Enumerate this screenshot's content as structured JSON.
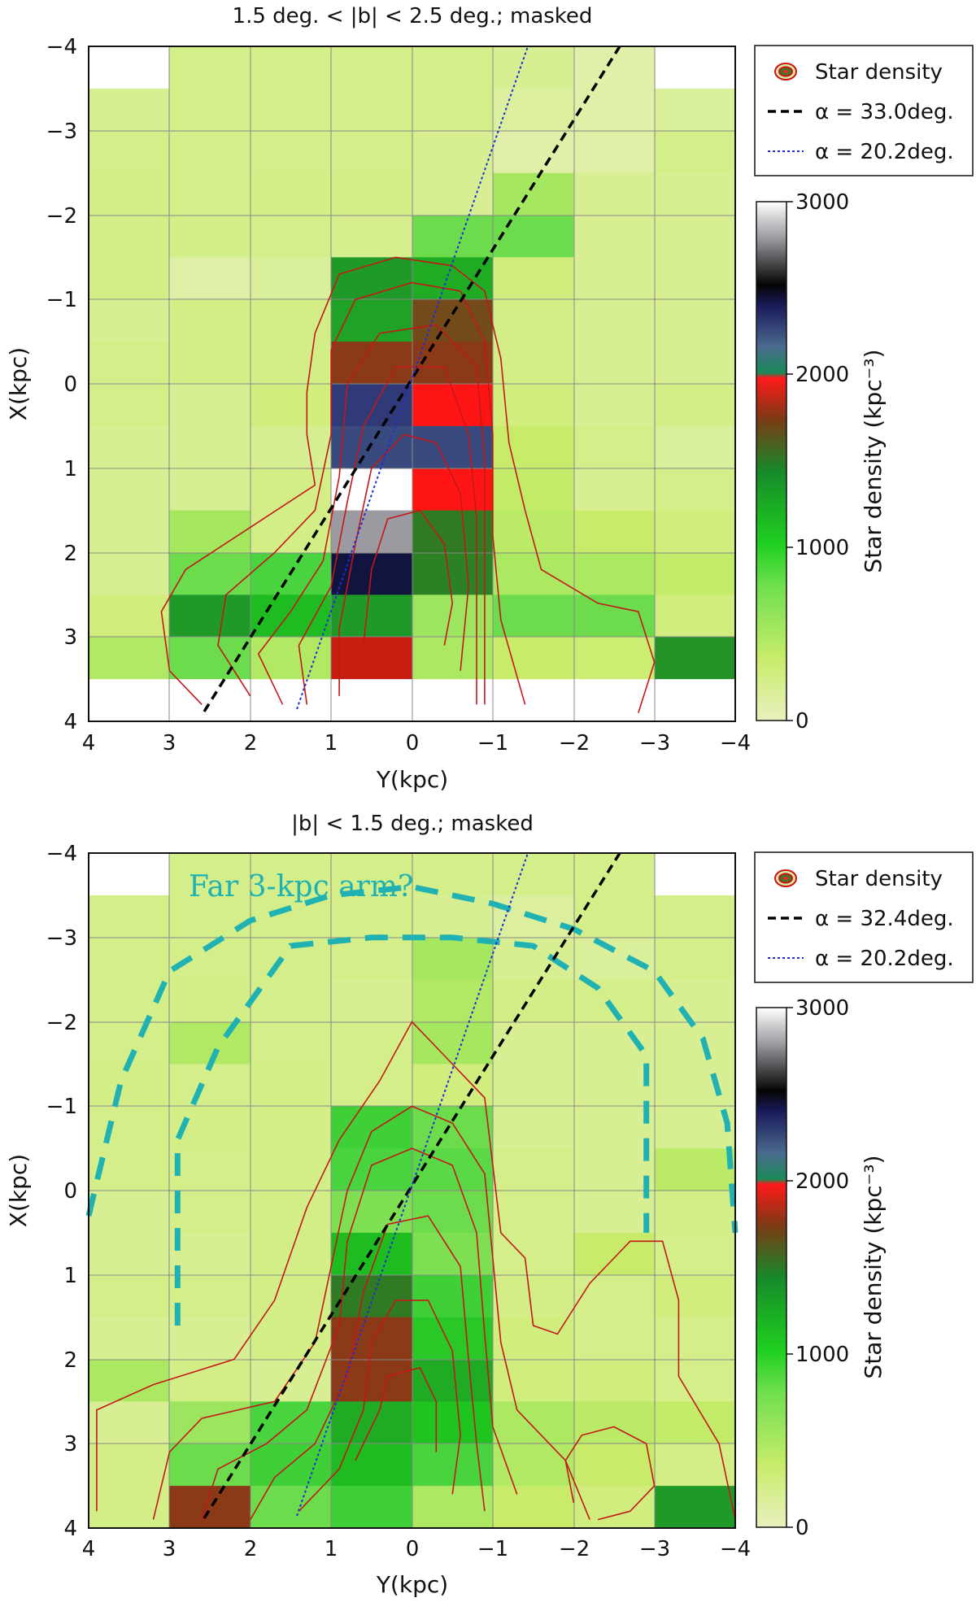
{
  "chart_data": [
    {
      "type": "heatmap",
      "title": "1.5 deg. < |b| < 2.5 deg.; masked",
      "xlabel": "Y(kpc)",
      "ylabel": "X(kpc)",
      "xlim": [
        4,
        -4
      ],
      "ylim": [
        -4,
        4
      ],
      "x_ticks": [
        "4",
        "3",
        "2",
        "1",
        "0",
        "−1",
        "−2",
        "−3",
        "−4"
      ],
      "y_ticks": [
        "−4",
        "−3",
        "−2",
        "−1",
        "0",
        "1",
        "2",
        "3",
        "4"
      ],
      "cell_y_edges": [
        4,
        3,
        2,
        1,
        0,
        -1,
        -2,
        -3,
        -4
      ],
      "cell_x_edges": [
        -4,
        -3.5,
        -3,
        -2.5,
        -2,
        -1.5,
        -1,
        -0.5,
        0,
        0.5,
        1,
        1.5,
        2,
        2.5,
        3,
        3.5,
        4
      ],
      "grid": [
        [
          0,
          320,
          320,
          320,
          320,
          300,
          240,
          0
        ],
        [
          300,
          320,
          320,
          320,
          320,
          270,
          240,
          280
        ],
        [
          320,
          320,
          320,
          320,
          300,
          240,
          250,
          320
        ],
        [
          330,
          320,
          330,
          330,
          300,
          520,
          300,
          300
        ],
        [
          330,
          330,
          320,
          310,
          700,
          700,
          300,
          300
        ],
        [
          330,
          250,
          280,
          1250,
          1150,
          350,
          300,
          300
        ],
        [
          300,
          330,
          330,
          1200,
          1600,
          330,
          300,
          300
        ],
        [
          320,
          330,
          330,
          1650,
          1650,
          330,
          300,
          300
        ],
        [
          320,
          300,
          350,
          2350,
          2000,
          350,
          300,
          330
        ],
        [
          300,
          300,
          300,
          2300,
          2300,
          400,
          320,
          280
        ],
        [
          300,
          300,
          330,
          3000,
          2000,
          420,
          300,
          320
        ],
        [
          300,
          520,
          330,
          2850,
          1450,
          450,
          400,
          350
        ],
        [
          300,
          700,
          800,
          2600,
          1400,
          500,
          500,
          420
        ],
        [
          350,
          1250,
          1050,
          1250,
          550,
          700,
          700,
          350
        ],
        [
          480,
          700,
          480,
          1800,
          500,
          400,
          380,
          1300
        ],
        [
          0,
          0,
          0,
          0,
          0,
          0,
          0,
          0
        ]
      ],
      "colorbar": {
        "label": "Star density (kpc⁻³)",
        "min": 0,
        "max": 3000,
        "ticks": [
          "3000",
          "2000",
          "1000",
          "0"
        ]
      },
      "legend": [
        "Star density",
        "α = 33.0deg.",
        "α = 20.2deg."
      ],
      "lines": [
        {
          "name": "α = 33.0deg.",
          "angle_deg": 33.0,
          "style": "dashed",
          "color": "#000000"
        },
        {
          "name": "α = 20.2deg.",
          "angle_deg": 20.2,
          "style": "dotted",
          "color": "#1f2fd6"
        }
      ],
      "contours": [
        [
          [
            2.6,
            3.8
          ],
          [
            3.0,
            3.4
          ],
          [
            3.1,
            2.7
          ],
          [
            2.8,
            2.2
          ],
          [
            2.0,
            1.7
          ],
          [
            1.2,
            1.2
          ],
          [
            1.3,
            0.6
          ],
          [
            1.3,
            0.1
          ],
          [
            1.2,
            -0.6
          ],
          [
            0.9,
            -1.3
          ],
          [
            0.2,
            -1.5
          ],
          [
            -0.5,
            -1.4
          ],
          [
            -0.9,
            -1.1
          ],
          [
            -1.1,
            -0.3
          ],
          [
            -1.2,
            0.7
          ],
          [
            -1.4,
            1.5
          ],
          [
            -1.6,
            2.2
          ],
          [
            -2.3,
            2.6
          ],
          [
            -2.8,
            2.7
          ],
          [
            -3.0,
            3.3
          ],
          [
            -2.8,
            3.9
          ]
        ],
        [
          [
            2.0,
            3.7
          ],
          [
            2.4,
            3.1
          ],
          [
            2.3,
            2.5
          ],
          [
            1.7,
            2.0
          ],
          [
            1.2,
            1.5
          ],
          [
            1.0,
            0.6
          ],
          [
            1.0,
            -0.4
          ],
          [
            0.7,
            -1.0
          ],
          [
            0.0,
            -1.2
          ],
          [
            -0.6,
            -1.1
          ],
          [
            -0.9,
            -0.5
          ],
          [
            -1.0,
            0.6
          ],
          [
            -1.0,
            1.8
          ],
          [
            -1.1,
            2.8
          ],
          [
            -1.4,
            3.8
          ]
        ],
        [
          [
            1.6,
            3.8
          ],
          [
            1.9,
            3.2
          ],
          [
            1.5,
            2.7
          ],
          [
            1.1,
            2.1
          ],
          [
            0.9,
            1.1
          ],
          [
            0.8,
            0.0
          ],
          [
            0.4,
            -0.6
          ],
          [
            -0.3,
            -0.7
          ],
          [
            -0.8,
            -0.2
          ],
          [
            -0.9,
            0.9
          ],
          [
            -0.9,
            2.2
          ],
          [
            -0.9,
            3.8
          ]
        ],
        [
          [
            1.3,
            3.8
          ],
          [
            1.4,
            3.1
          ],
          [
            1.0,
            2.4
          ],
          [
            0.8,
            1.4
          ],
          [
            0.6,
            0.5
          ],
          [
            0.2,
            -0.2
          ],
          [
            -0.4,
            -0.2
          ],
          [
            -0.7,
            0.6
          ],
          [
            -0.8,
            1.6
          ],
          [
            -0.8,
            2.8
          ],
          [
            -0.8,
            3.8
          ]
        ],
        [
          [
            0.9,
            3.7
          ],
          [
            0.9,
            2.9
          ],
          [
            0.7,
            1.9
          ],
          [
            0.5,
            1.0
          ],
          [
            0.1,
            0.6
          ],
          [
            -0.3,
            0.7
          ],
          [
            -0.6,
            1.3
          ],
          [
            -0.7,
            2.4
          ],
          [
            -0.6,
            3.4
          ]
        ],
        [
          [
            0.6,
            3.1
          ],
          [
            0.5,
            2.2
          ],
          [
            0.3,
            1.6
          ],
          [
            -0.1,
            1.5
          ],
          [
            -0.4,
            1.9
          ],
          [
            -0.5,
            2.6
          ],
          [
            -0.4,
            3.1
          ]
        ]
      ]
    },
    {
      "type": "heatmap",
      "title": "|b| < 1.5 deg.; masked",
      "xlabel": "Y(kpc)",
      "ylabel": "X(kpc)",
      "xlim": [
        4,
        -4
      ],
      "ylim": [
        -4,
        4
      ],
      "x_ticks": [
        "4",
        "3",
        "2",
        "1",
        "0",
        "−1",
        "−2",
        "−3",
        "−4"
      ],
      "y_ticks": [
        "−4",
        "−3",
        "−2",
        "−1",
        "0",
        "1",
        "2",
        "3",
        "4"
      ],
      "cell_y_edges": [
        4,
        3,
        2,
        1,
        0,
        -1,
        -2,
        -3,
        -4
      ],
      "cell_x_edges": [
        -4,
        -3.5,
        -3,
        -2.5,
        -2,
        -1.5,
        -1,
        -0.5,
        0,
        0.5,
        1,
        1.5,
        2,
        2.5,
        3,
        3.5,
        4
      ],
      "grid": [
        [
          0,
          320,
          320,
          320,
          320,
          320,
          320,
          0
        ],
        [
          320,
          320,
          320,
          320,
          300,
          270,
          320,
          320
        ],
        [
          320,
          320,
          320,
          320,
          520,
          300,
          280,
          320
        ],
        [
          320,
          330,
          320,
          300,
          480,
          330,
          320,
          300
        ],
        [
          320,
          480,
          320,
          320,
          520,
          300,
          300,
          300
        ],
        [
          330,
          320,
          330,
          320,
          350,
          300,
          300,
          300
        ],
        [
          320,
          330,
          330,
          850,
          700,
          300,
          300,
          300
        ],
        [
          320,
          320,
          330,
          800,
          750,
          320,
          300,
          450
        ],
        [
          300,
          320,
          330,
          650,
          700,
          320,
          300,
          330
        ],
        [
          300,
          300,
          330,
          1050,
          650,
          320,
          400,
          320
        ],
        [
          320,
          320,
          330,
          1450,
          850,
          330,
          320,
          350
        ],
        [
          300,
          300,
          330,
          1650,
          950,
          350,
          320,
          320
        ],
        [
          500,
          330,
          300,
          1650,
          1150,
          350,
          350,
          320
        ],
        [
          300,
          550,
          800,
          1150,
          1000,
          500,
          450,
          420
        ],
        [
          330,
          700,
          850,
          1050,
          800,
          480,
          400,
          330
        ],
        [
          330,
          1650,
          700,
          850,
          500,
          400,
          350,
          1250
        ]
      ],
      "colorbar": {
        "label": "Star density (kpc⁻³)",
        "min": 0,
        "max": 3000,
        "ticks": [
          "3000",
          "2000",
          "1000",
          "0"
        ]
      },
      "legend": [
        "Star density",
        "α = 32.4deg.",
        "α = 20.2deg."
      ],
      "annotation": "Far 3-kpc arm?",
      "lines": [
        {
          "name": "α = 32.4deg.",
          "angle_deg": 32.4,
          "style": "dashed",
          "color": "#000000"
        },
        {
          "name": "α = 20.2deg.",
          "angle_deg": 20.2,
          "style": "dotted",
          "color": "#1f2fd6"
        }
      ],
      "arm_curves": [
        [
          [
            4.0,
            0.3
          ],
          [
            3.6,
            -1.3
          ],
          [
            3.0,
            -2.6
          ],
          [
            2.0,
            -3.2
          ],
          [
            1.0,
            -3.5
          ],
          [
            0.0,
            -3.6
          ],
          [
            -1.0,
            -3.4
          ],
          [
            -2.0,
            -3.1
          ],
          [
            -3.0,
            -2.6
          ],
          [
            -3.6,
            -1.8
          ],
          [
            -3.9,
            -0.8
          ],
          [
            -4.0,
            0.5
          ]
        ],
        [
          [
            2.9,
            1.6
          ],
          [
            2.9,
            -0.6
          ],
          [
            2.4,
            -1.7
          ],
          [
            1.5,
            -2.9
          ],
          [
            0.5,
            -3.0
          ],
          [
            -0.5,
            -3.0
          ],
          [
            -1.5,
            -2.9
          ],
          [
            -2.3,
            -2.4
          ],
          [
            -2.9,
            -1.6
          ],
          [
            -2.9,
            -0.2
          ],
          [
            -2.9,
            0.5
          ]
        ]
      ],
      "contours": [
        [
          [
            3.9,
            3.8
          ],
          [
            3.9,
            2.6
          ],
          [
            3.2,
            2.3
          ],
          [
            2.2,
            2.0
          ],
          [
            1.7,
            1.3
          ],
          [
            1.3,
            0.2
          ],
          [
            0.9,
            -0.6
          ],
          [
            0.4,
            -1.3
          ],
          [
            0.0,
            -2.0
          ],
          [
            -0.4,
            -1.6
          ],
          [
            -0.9,
            -1.1
          ],
          [
            -1.0,
            -0.3
          ],
          [
            -1.1,
            0.5
          ],
          [
            -1.4,
            0.8
          ],
          [
            -1.5,
            1.6
          ],
          [
            -1.8,
            1.7
          ],
          [
            -2.2,
            1.1
          ],
          [
            -2.7,
            0.6
          ],
          [
            -3.1,
            0.6
          ],
          [
            -3.3,
            1.3
          ],
          [
            -3.3,
            2.2
          ],
          [
            -3.8,
            3.0
          ],
          [
            -4.0,
            3.9
          ]
        ],
        [
          [
            3.2,
            3.9
          ],
          [
            3.0,
            3.1
          ],
          [
            2.6,
            2.7
          ],
          [
            1.7,
            2.5
          ],
          [
            1.2,
            1.8
          ],
          [
            1.0,
            0.9
          ],
          [
            0.8,
            0.0
          ],
          [
            0.5,
            -0.7
          ],
          [
            0.0,
            -1.0
          ],
          [
            -0.5,
            -0.8
          ],
          [
            -0.9,
            -0.2
          ],
          [
            -1.0,
            0.8
          ],
          [
            -1.1,
            1.8
          ],
          [
            -1.3,
            2.6
          ],
          [
            -1.9,
            3.2
          ],
          [
            -2.2,
            3.9
          ]
        ],
        [
          [
            2.6,
            3.9
          ],
          [
            2.4,
            3.3
          ],
          [
            1.8,
            3.0
          ],
          [
            1.3,
            2.6
          ],
          [
            0.9,
            1.6
          ],
          [
            0.8,
            0.6
          ],
          [
            0.5,
            -0.3
          ],
          [
            0.0,
            -0.5
          ],
          [
            -0.5,
            -0.3
          ],
          [
            -0.8,
            0.5
          ],
          [
            -0.9,
            1.7
          ],
          [
            -1.0,
            2.8
          ],
          [
            -1.3,
            3.6
          ]
        ],
        [
          [
            2.0,
            3.9
          ],
          [
            1.7,
            3.4
          ],
          [
            1.2,
            3.0
          ],
          [
            0.8,
            2.2
          ],
          [
            0.6,
            1.2
          ],
          [
            0.3,
            0.4
          ],
          [
            -0.2,
            0.3
          ],
          [
            -0.6,
            0.9
          ],
          [
            -0.7,
            2.0
          ],
          [
            -0.8,
            3.0
          ],
          [
            -0.9,
            3.8
          ]
        ],
        [
          [
            1.4,
            3.8
          ],
          [
            0.9,
            3.3
          ],
          [
            0.6,
            2.6
          ],
          [
            0.5,
            1.8
          ],
          [
            0.2,
            1.3
          ],
          [
            -0.2,
            1.3
          ],
          [
            -0.5,
            1.9
          ],
          [
            -0.6,
            2.9
          ],
          [
            -0.5,
            3.6
          ]
        ],
        [
          [
            0.7,
            3.2
          ],
          [
            0.4,
            2.6
          ],
          [
            0.3,
            2.2
          ],
          [
            -0.1,
            2.1
          ],
          [
            -0.3,
            2.5
          ],
          [
            -0.3,
            3.1
          ]
        ],
        [
          [
            -2.0,
            3.7
          ],
          [
            -1.9,
            3.2
          ],
          [
            -2.1,
            2.9
          ],
          [
            -2.5,
            2.8
          ],
          [
            -2.9,
            3.0
          ],
          [
            -3.0,
            3.5
          ],
          [
            -2.7,
            3.8
          ],
          [
            -2.3,
            3.9
          ]
        ]
      ]
    }
  ]
}
